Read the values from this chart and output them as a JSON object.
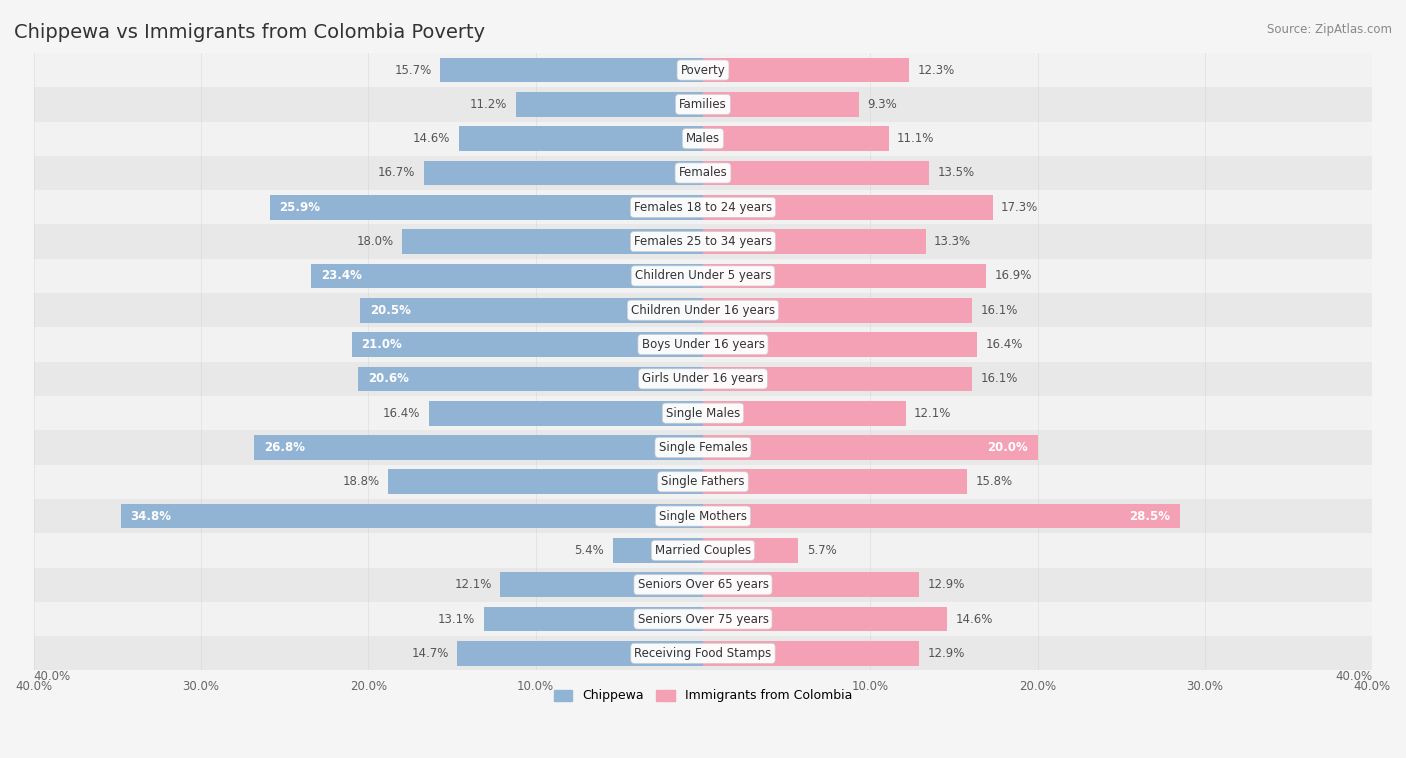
{
  "title": "Chippewa vs Immigrants from Colombia Poverty",
  "source": "Source: ZipAtlas.com",
  "categories": [
    "Poverty",
    "Families",
    "Males",
    "Females",
    "Females 18 to 24 years",
    "Females 25 to 34 years",
    "Children Under 5 years",
    "Children Under 16 years",
    "Boys Under 16 years",
    "Girls Under 16 years",
    "Single Males",
    "Single Females",
    "Single Fathers",
    "Single Mothers",
    "Married Couples",
    "Seniors Over 65 years",
    "Seniors Over 75 years",
    "Receiving Food Stamps"
  ],
  "chippewa": [
    15.7,
    11.2,
    14.6,
    16.7,
    25.9,
    18.0,
    23.4,
    20.5,
    21.0,
    20.6,
    16.4,
    26.8,
    18.8,
    34.8,
    5.4,
    12.1,
    13.1,
    14.7
  ],
  "colombia": [
    12.3,
    9.3,
    11.1,
    13.5,
    17.3,
    13.3,
    16.9,
    16.1,
    16.4,
    16.1,
    12.1,
    20.0,
    15.8,
    28.5,
    5.7,
    12.9,
    14.6,
    12.9
  ],
  "max_val": 40.0,
  "chippewa_color": "#92b4d4",
  "colombia_color": "#f4a0b5",
  "row_bg_light": "#f2f2f2",
  "row_bg_dark": "#e8e8e8",
  "label_fontsize": 8.5,
  "value_fontsize": 8.5,
  "title_fontsize": 14,
  "legend_label1": "Chippewa",
  "legend_label2": "Immigrants from Colombia",
  "inside_threshold_chip": 20.0,
  "inside_threshold_col": 18.0
}
